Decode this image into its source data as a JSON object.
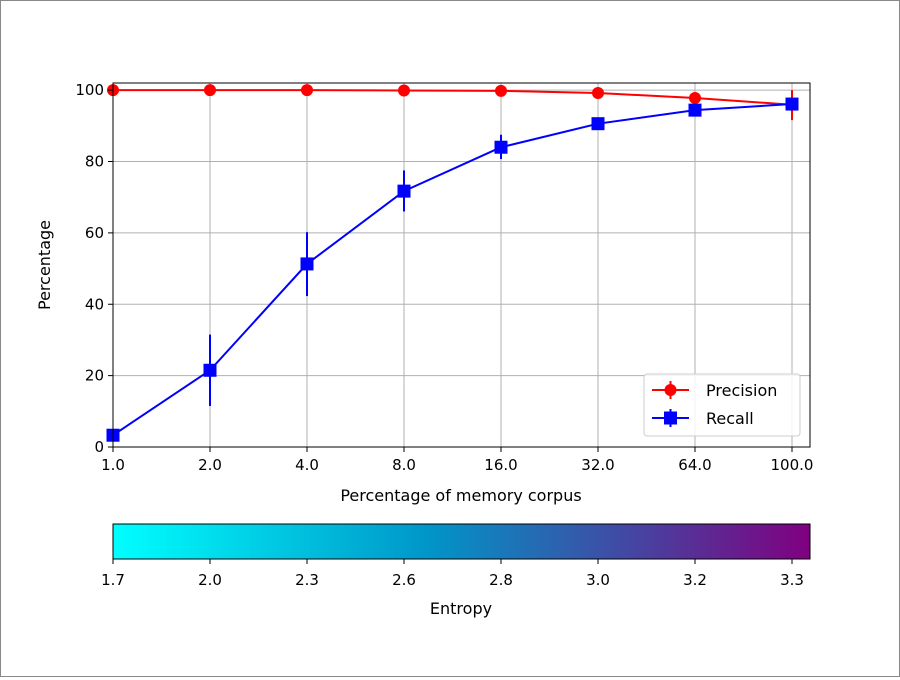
{
  "chart_data": {
    "type": "line",
    "title": "",
    "xlabel": "Percentage of memory corpus",
    "ylabel": "Percentage",
    "categories": [
      "1.0",
      "2.0",
      "4.0",
      "8.0",
      "16.0",
      "32.0",
      "64.0",
      "100.0"
    ],
    "ylim": [
      0,
      102
    ],
    "yticks": [
      "0",
      "20",
      "40",
      "60",
      "80",
      "100"
    ],
    "grid": true,
    "legend_position": "bottom-right",
    "series": [
      {
        "name": "Precision",
        "color": "#ff0000",
        "marker": "circle",
        "values": [
          100,
          100,
          100,
          99.9,
          99.8,
          99.2,
          97.8,
          95.9
        ],
        "error_low": [
          100,
          100,
          100,
          99.9,
          99.8,
          99.2,
          97.8,
          91.6
        ],
        "error_high": [
          100,
          100,
          100,
          99.9,
          99.8,
          99.2,
          97.8,
          100
        ]
      },
      {
        "name": "Recall",
        "color": "#0000ff",
        "marker": "square",
        "values": [
          3.3,
          21.5,
          51.3,
          71.7,
          84.0,
          90.6,
          94.4,
          96.1
        ],
        "error_low": [
          1.7,
          11.5,
          42.3,
          66.0,
          80.7,
          89.6,
          93.6,
          95.3
        ],
        "error_high": [
          5.0,
          31.5,
          60.2,
          77.5,
          87.5,
          91.6,
          95.2,
          96.9
        ]
      }
    ],
    "colorbar": {
      "label": "Entropy",
      "ticks": [
        "1.7",
        "2.0",
        "2.3",
        "2.6",
        "2.8",
        "3.0",
        "3.2",
        "3.3"
      ],
      "colors": [
        "#00ffff",
        "#0096c8",
        "#800080"
      ]
    }
  }
}
